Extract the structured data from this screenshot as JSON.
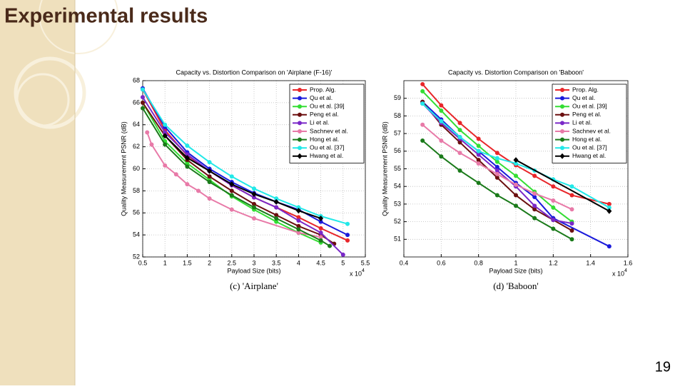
{
  "title": "Experimental results",
  "page_number": 19,
  "chart_data": [
    {
      "type": "line",
      "title": "Capacity vs. Distortion Comparison on 'Airplane (F-16)'",
      "x_label": "Payload Size (bits)",
      "y_label": "Quality Measurement PSNR (dB)",
      "caption": "(c)  'Airplane'",
      "x_scale": {
        "label": "x 10",
        "exponent": 4
      },
      "xlim": [
        0.5,
        5.5
      ],
      "xticks": [
        0.5,
        1,
        1.5,
        2,
        2.5,
        3,
        3.5,
        4,
        4.5,
        5,
        5.5
      ],
      "ylim": [
        52,
        68
      ],
      "yticks": [
        52,
        54,
        56,
        58,
        60,
        62,
        64,
        66,
        68
      ],
      "grid": true,
      "legend": "upper right",
      "series": [
        {
          "name": "Prop. Alg.",
          "color": "#e8262a",
          "marker": "circle",
          "x": [
            0.5,
            1,
            1.5,
            2,
            2.5,
            3,
            3.5,
            4,
            4.5,
            5.1
          ],
          "values": [
            67.2,
            63.5,
            61.2,
            59.8,
            58.5,
            57.4,
            56.5,
            55.6,
            54.6,
            53.5
          ]
        },
        {
          "name": "Qu et al.",
          "color": "#1a1adb",
          "marker": "circle",
          "x": [
            0.5,
            1,
            1.5,
            2,
            2.5,
            3,
            3.5,
            4,
            4.5,
            5.1
          ],
          "values": [
            67.3,
            63.8,
            61.5,
            60,
            58.8,
            57.8,
            57,
            56.3,
            55.2,
            54
          ]
        },
        {
          "name": "Ou et al. [39]",
          "color": "#33dd33",
          "marker": "circle",
          "x": [
            0.5,
            1,
            1.5,
            2,
            2.5,
            3,
            3.5,
            4,
            4.5
          ],
          "values": [
            66,
            62.5,
            60.5,
            59,
            57.5,
            56.3,
            55.2,
            54.2,
            53.3
          ]
        },
        {
          "name": "Peng et al.",
          "color": "#6b0f0f",
          "marker": "circle",
          "x": [
            0.5,
            1,
            1.5,
            2,
            2.5,
            3,
            3.5,
            4,
            4.5,
            4.8
          ],
          "values": [
            66,
            63,
            60.8,
            59.3,
            58,
            56.8,
            55.8,
            54.8,
            54,
            53.2
          ]
        },
        {
          "name": "Li et al.",
          "color": "#7a28c8",
          "marker": "circle",
          "x": [
            0.5,
            1,
            1.5,
            2,
            2.5,
            3,
            3.5,
            4,
            4.5,
            5
          ],
          "values": [
            66.5,
            63.3,
            61.3,
            59.8,
            58.5,
            57.4,
            56.5,
            55.3,
            54.2,
            52.2
          ]
        },
        {
          "name": "Sachnev et al.",
          "color": "#e87aa8",
          "marker": "circle",
          "x": [
            0.6,
            0.7,
            1,
            1.25,
            1.5,
            1.75,
            2,
            2.5,
            3,
            4,
            4.5
          ],
          "values": [
            63.3,
            62.2,
            60.3,
            59.5,
            58.6,
            58,
            57.3,
            56.3,
            55.5,
            54.2,
            53.8
          ]
        },
        {
          "name": "Hong et al.",
          "color": "#1a7a1a",
          "marker": "circle",
          "x": [
            0.5,
            1,
            1.5,
            2,
            2.5,
            3,
            3.5,
            4,
            4.5,
            4.7
          ],
          "values": [
            65.5,
            62.2,
            60.2,
            58.8,
            57.6,
            56.5,
            55.5,
            54.5,
            53.5,
            53
          ]
        },
        {
          "name": "Ou et al. [37]",
          "color": "#22e8e8",
          "marker": "circle",
          "x": [
            0.5,
            1,
            1.5,
            2,
            2.5,
            3,
            3.5,
            4,
            4.5,
            5.1
          ],
          "values": [
            67.2,
            64,
            62.1,
            60.6,
            59.3,
            58.2,
            57.3,
            56.5,
            55.7,
            55
          ]
        },
        {
          "name": "Hwang et al.",
          "color": "#000000",
          "marker": "diamond",
          "x": [
            1,
            1.5,
            2,
            2.5,
            3,
            3.5,
            4,
            4.5
          ],
          "values": [
            63,
            61,
            59.8,
            58.6,
            57.7,
            57,
            56.2,
            55.5
          ]
        }
      ]
    },
    {
      "type": "line",
      "title": "Capacity vs. Distortion Comparison on 'Baboon'",
      "x_label": "Payload Size (bits)",
      "y_label": "Quality Measurement PSNR (dB)",
      "caption": "(d)  'Baboon'",
      "x_scale": {
        "label": "x 10",
        "exponent": 4
      },
      "xlim": [
        0.4,
        1.6
      ],
      "xticks": [
        0.4,
        0.6,
        0.8,
        1,
        1.2,
        1.4,
        1.6
      ],
      "ylim": [
        50,
        60
      ],
      "yticks": [
        51,
        52,
        53,
        54,
        55,
        56,
        57,
        58,
        59
      ],
      "grid": true,
      "legend": "upper right",
      "series": [
        {
          "name": "Prop. Alg.",
          "color": "#e8262a",
          "marker": "circle",
          "x": [
            0.5,
            0.6,
            0.7,
            0.8,
            0.9,
            1,
            1.1,
            1.2,
            1.3,
            1.5
          ],
          "values": [
            59.8,
            58.6,
            57.6,
            56.7,
            55.9,
            55.2,
            54.6,
            54,
            53.5,
            53
          ]
        },
        {
          "name": "Qu et al.",
          "color": "#1a1adb",
          "marker": "circle",
          "x": [
            0.5,
            0.6,
            0.7,
            0.8,
            0.9,
            1,
            1.1,
            1.2,
            1.5
          ],
          "values": [
            58.8,
            57.8,
            56.8,
            56,
            55.1,
            54.2,
            53.4,
            52.2,
            50.6
          ]
        },
        {
          "name": "Ou et al. [39]",
          "color": "#33dd33",
          "marker": "circle",
          "x": [
            0.5,
            0.6,
            0.7,
            0.8,
            0.9,
            1,
            1.1,
            1.2,
            1.3
          ],
          "values": [
            59.4,
            58.3,
            57.2,
            56.3,
            55.4,
            54.6,
            53.7,
            52.8,
            52
          ]
        },
        {
          "name": "Peng et al.",
          "color": "#6b0f0f",
          "marker": "circle",
          "x": [
            0.5,
            0.6,
            0.7,
            0.8,
            0.9,
            1,
            1.1,
            1.2,
            1.3
          ],
          "values": [
            58.8,
            57.5,
            56.5,
            55.5,
            54.5,
            53.5,
            52.7,
            52.1,
            51.5
          ]
        },
        {
          "name": "Li et al.",
          "color": "#7a28c8",
          "marker": "circle",
          "x": [
            0.5,
            0.6,
            0.7,
            0.8,
            0.9,
            1,
            1.1,
            1.2,
            1.3
          ],
          "values": [
            58.7,
            57.6,
            56.7,
            55.8,
            54.9,
            54,
            52.9,
            52.1,
            51.9
          ]
        },
        {
          "name": "Sachnev et al.",
          "color": "#e87aa8",
          "marker": "circle",
          "x": [
            0.5,
            0.6,
            0.7,
            0.8,
            0.9,
            1,
            1.1,
            1.2,
            1.3
          ],
          "values": [
            57.5,
            56.6,
            55.9,
            55.3,
            54.7,
            54.1,
            53.6,
            53.2,
            52.7
          ]
        },
        {
          "name": "Hong et al.",
          "color": "#1a7a1a",
          "marker": "circle",
          "x": [
            0.5,
            0.6,
            0.7,
            0.8,
            0.9,
            1,
            1.1,
            1.2,
            1.3
          ],
          "values": [
            56.6,
            55.7,
            54.9,
            54.2,
            53.5,
            52.9,
            52.2,
            51.6,
            51
          ]
        },
        {
          "name": "Ou et al. [37]",
          "color": "#22e8e8",
          "marker": "circle",
          "x": [
            0.5,
            0.6,
            0.7,
            0.8,
            0.9,
            1,
            1.1,
            1.2,
            1.3,
            1.5
          ],
          "values": [
            58.7,
            57.7,
            56.8,
            56,
            55.6,
            55.3,
            54.9,
            54.4,
            54,
            52.8
          ]
        },
        {
          "name": "Hwang et al.",
          "color": "#000000",
          "marker": "diamond",
          "x": [
            1,
            1.5
          ],
          "values": [
            55.5,
            52.6
          ]
        }
      ]
    }
  ]
}
